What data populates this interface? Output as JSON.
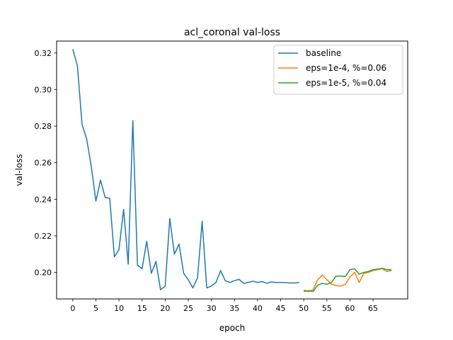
{
  "chart_data": {
    "type": "line",
    "title": "acl_coronal val-loss",
    "xlabel": "epoch",
    "ylabel": "val-loss",
    "xlim": [
      -3.5,
      72.5
    ],
    "ylim": [
      0.1855,
      0.3265
    ],
    "xticks": [
      0,
      5,
      10,
      15,
      20,
      25,
      30,
      35,
      40,
      45,
      50,
      55,
      60,
      65
    ],
    "yticks": [
      0.2,
      0.22,
      0.24,
      0.26,
      0.28,
      0.3,
      0.32
    ],
    "ytick_labels": [
      "0.20",
      "0.22",
      "0.24",
      "0.26",
      "0.28",
      "0.30",
      "0.32"
    ],
    "grid": false,
    "legend_position": "top-right",
    "series": [
      {
        "name": "baseline",
        "color": "#1f77b4",
        "x": [
          0,
          1,
          2,
          3,
          4,
          5,
          6,
          7,
          8,
          9,
          10,
          11,
          12,
          13,
          14,
          15,
          16,
          17,
          18,
          19,
          20,
          21,
          22,
          23,
          24,
          25,
          26,
          27,
          28,
          29,
          30,
          31,
          32,
          33,
          34,
          35,
          36,
          37,
          38,
          39,
          40,
          41,
          42,
          43,
          44,
          45,
          46,
          47,
          48,
          49
        ],
        "y": [
          0.322,
          0.313,
          0.281,
          0.273,
          0.258,
          0.239,
          0.2505,
          0.241,
          0.2405,
          0.2085,
          0.2125,
          0.2345,
          0.2045,
          0.283,
          0.204,
          0.202,
          0.217,
          0.1995,
          0.206,
          0.1905,
          0.1925,
          0.2295,
          0.21,
          0.2155,
          0.1995,
          0.196,
          0.1915,
          0.197,
          0.228,
          0.1915,
          0.1925,
          0.1945,
          0.201,
          0.1955,
          0.1945,
          0.1955,
          0.1962,
          0.194,
          0.1945,
          0.1952,
          0.1945,
          0.195,
          0.194,
          0.1948,
          0.1945,
          0.1945,
          0.1944,
          0.1942,
          0.1942,
          0.1945
        ]
      },
      {
        "name": "eps=1e-4, %=0.06",
        "color": "#ff7f0e",
        "x": [
          50,
          51,
          52,
          53,
          54,
          55,
          56,
          57,
          58,
          59,
          60,
          61,
          62,
          63,
          64,
          65,
          66,
          67,
          68,
          69
        ],
        "y": [
          0.1905,
          0.1895,
          0.1905,
          0.196,
          0.1985,
          0.196,
          0.1935,
          0.1928,
          0.1925,
          0.1935,
          0.1975,
          0.2,
          0.1945,
          0.1995,
          0.2,
          0.201,
          0.2015,
          0.202,
          0.2005,
          0.201
        ]
      },
      {
        "name": "eps=1e-5, %=0.04",
        "color": "#2ca02c",
        "x": [
          50,
          51,
          52,
          53,
          54,
          55,
          56,
          57,
          58,
          59,
          60,
          61,
          62,
          63,
          64,
          65,
          66,
          67,
          68,
          69
        ],
        "y": [
          0.1895,
          0.19,
          0.1895,
          0.193,
          0.194,
          0.1935,
          0.1945,
          0.198,
          0.198,
          0.1978,
          0.2015,
          0.202,
          0.199,
          0.2,
          0.2005,
          0.2015,
          0.2018,
          0.2022,
          0.2015,
          0.2015
        ]
      }
    ]
  }
}
